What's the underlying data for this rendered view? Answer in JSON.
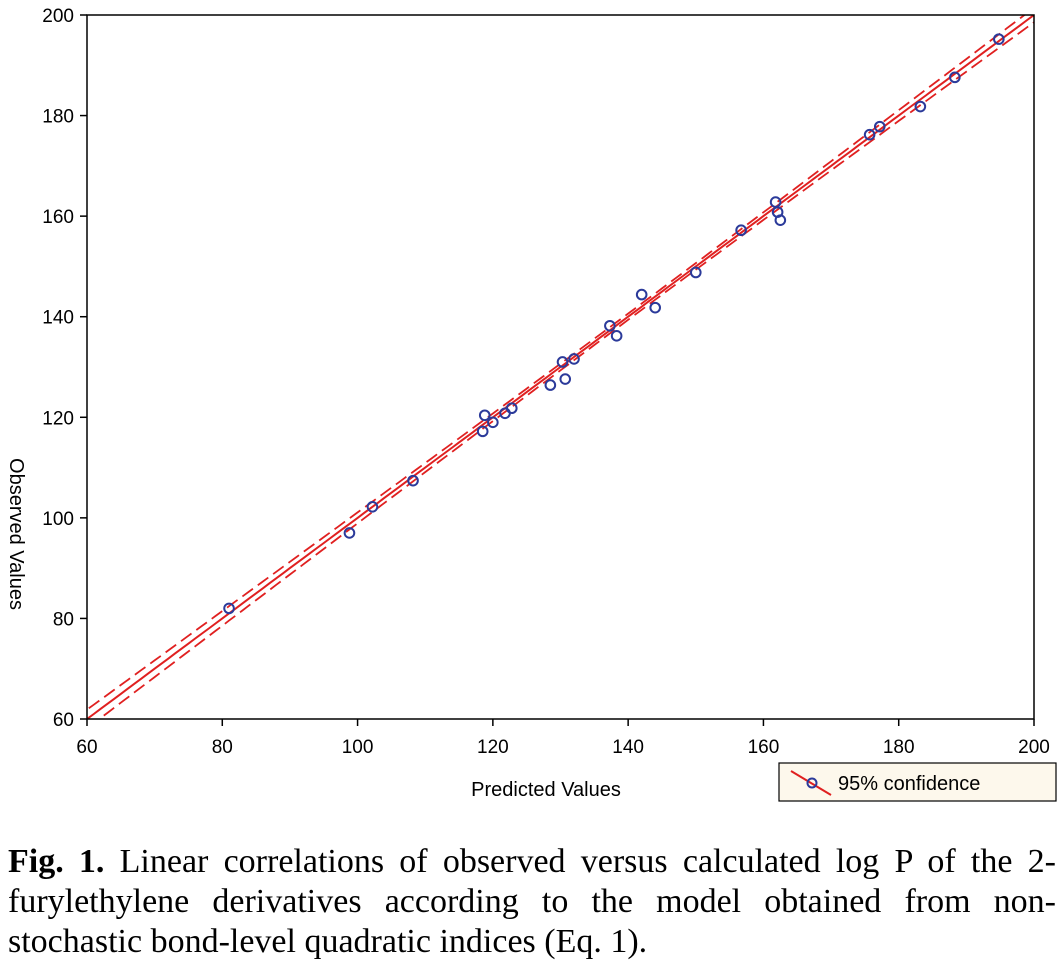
{
  "chart_data": {
    "type": "scatter",
    "xlabel": "Predicted Values",
    "ylabel": "Observed Values",
    "xlim": [
      60,
      200
    ],
    "ylim": [
      60,
      200
    ],
    "xticks": [
      60,
      80,
      100,
      120,
      140,
      160,
      180,
      200
    ],
    "yticks": [
      60,
      80,
      100,
      120,
      140,
      160,
      180,
      200
    ],
    "grid": false,
    "legend": {
      "position": "bottom-right",
      "label": "95% confidence"
    },
    "colors": {
      "line": "#e02020",
      "marker": "#2b3a9a"
    },
    "fit_line": {
      "slope": 1.0,
      "intercept": 0.0
    },
    "points": [
      {
        "x": 81,
        "y": 82
      },
      {
        "x": 98.8,
        "y": 97
      },
      {
        "x": 102.2,
        "y": 102.2
      },
      {
        "x": 108.2,
        "y": 107.4
      },
      {
        "x": 118.5,
        "y": 117.2
      },
      {
        "x": 118.8,
        "y": 120.4
      },
      {
        "x": 120,
        "y": 119
      },
      {
        "x": 121.8,
        "y": 120.8
      },
      {
        "x": 122.8,
        "y": 121.8
      },
      {
        "x": 128.5,
        "y": 126.4
      },
      {
        "x": 130.3,
        "y": 131
      },
      {
        "x": 130.7,
        "y": 127.6
      },
      {
        "x": 132,
        "y": 131.6
      },
      {
        "x": 137.3,
        "y": 138.2
      },
      {
        "x": 138.3,
        "y": 136.2
      },
      {
        "x": 142,
        "y": 144.4
      },
      {
        "x": 144,
        "y": 141.8
      },
      {
        "x": 150,
        "y": 148.8
      },
      {
        "x": 156.7,
        "y": 157.2
      },
      {
        "x": 161.8,
        "y": 162.8
      },
      {
        "x": 162.1,
        "y": 160.8
      },
      {
        "x": 162.5,
        "y": 159.2
      },
      {
        "x": 175.7,
        "y": 176.2
      },
      {
        "x": 177.2,
        "y": 177.8
      },
      {
        "x": 183.2,
        "y": 181.8
      },
      {
        "x": 188.3,
        "y": 187.6
      },
      {
        "x": 194.8,
        "y": 195.2
      }
    ]
  },
  "caption": {
    "label": "Fig. 1.",
    "text": " Linear correlations of observed versus calculated log P of the 2-furylethylene derivatives according to the model obtained from non-stochastic bond-level quadratic indices (Eq. 1)."
  }
}
